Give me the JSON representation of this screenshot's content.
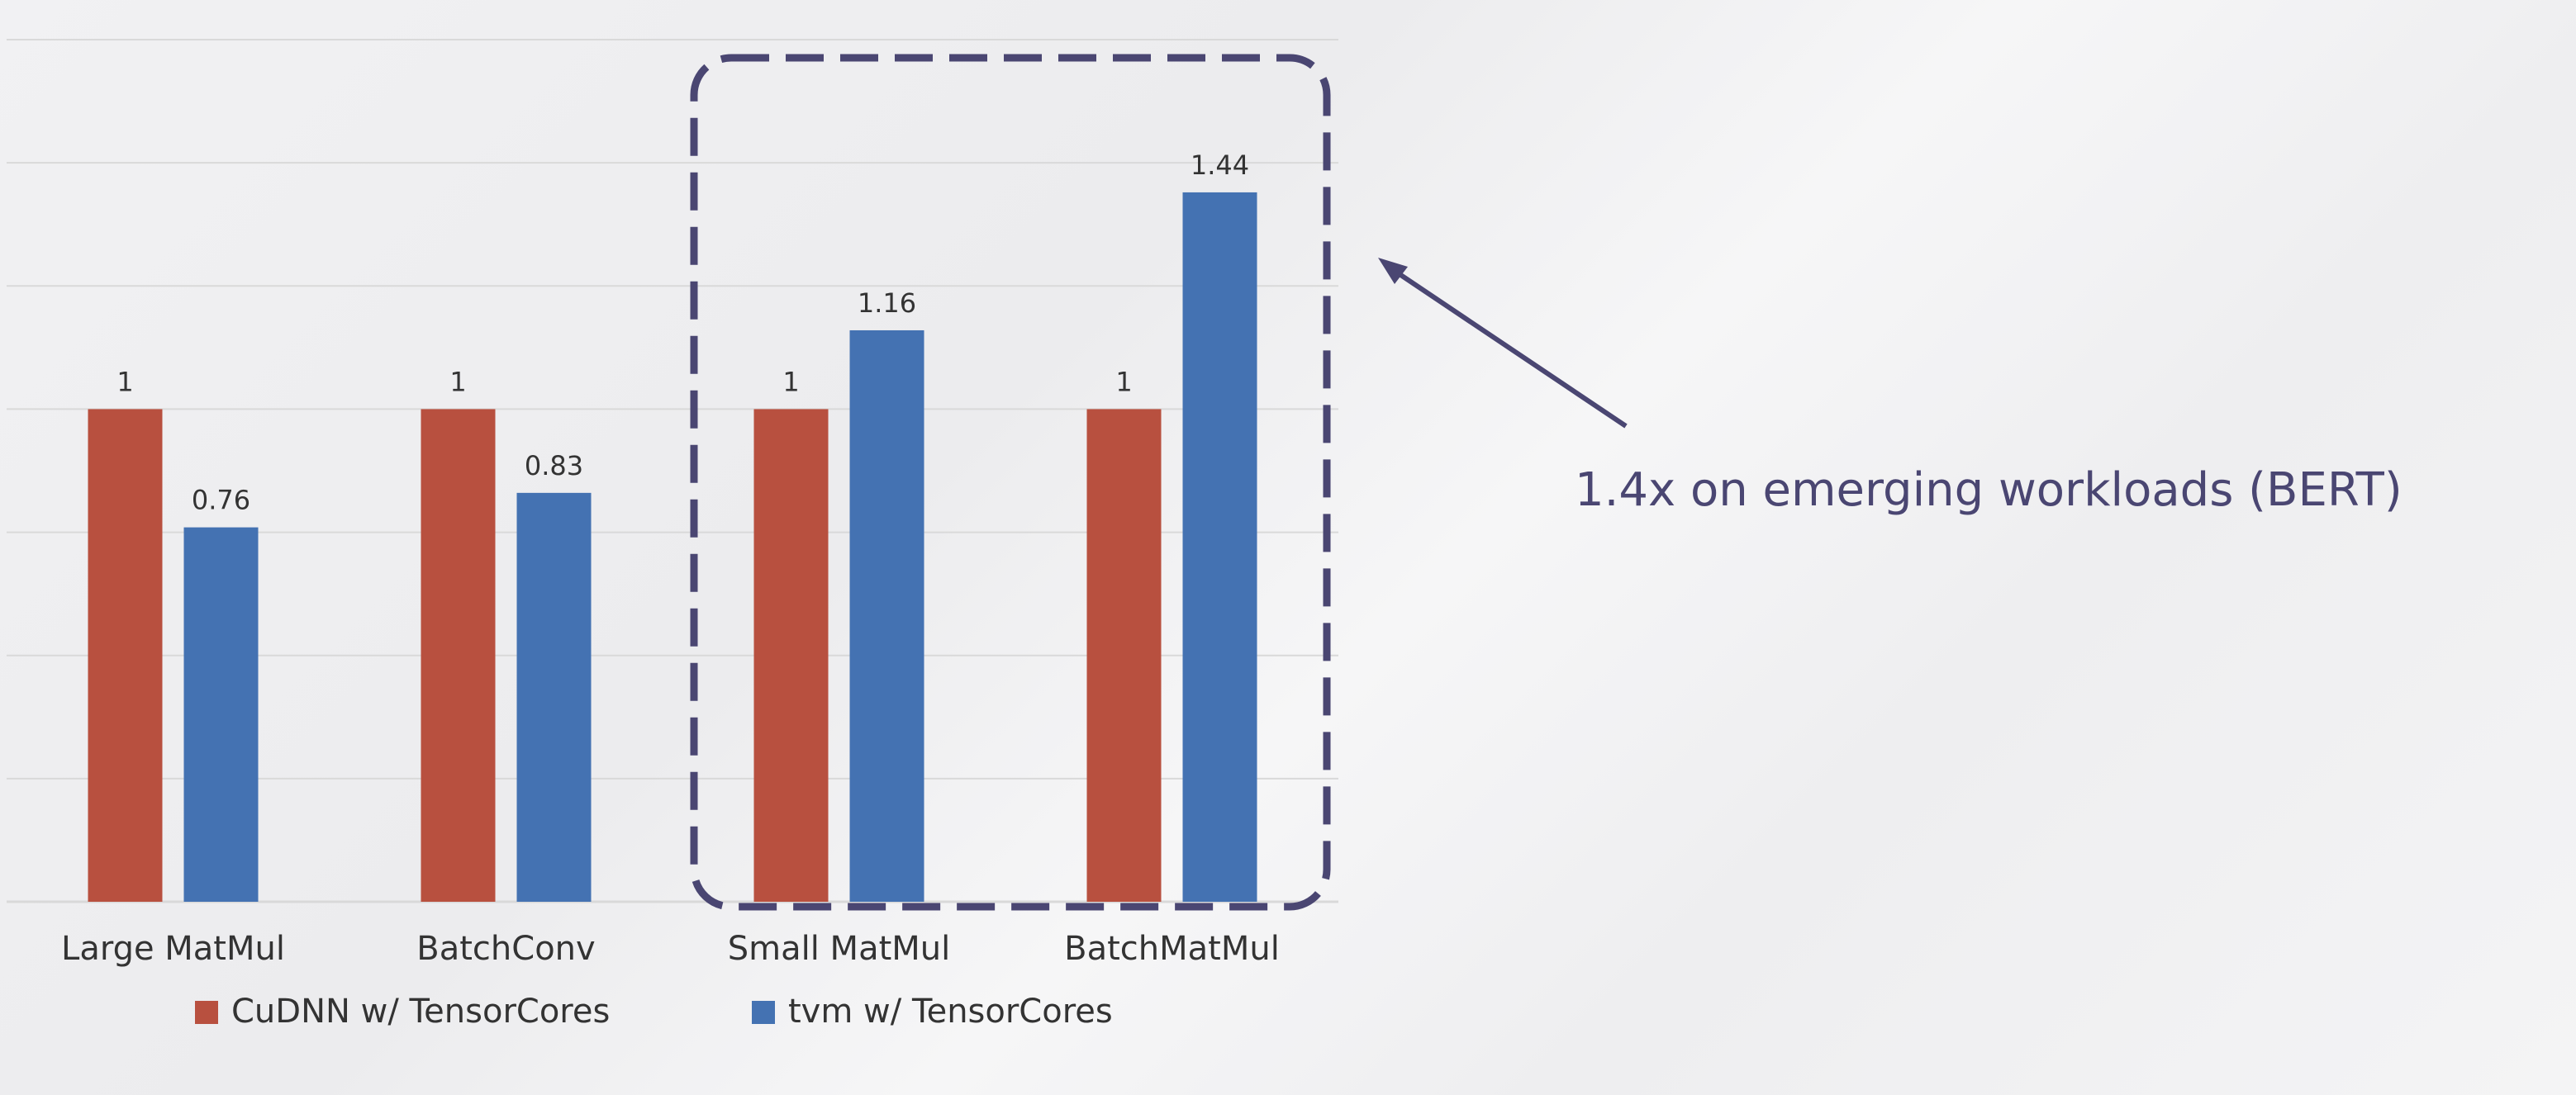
{
  "chart_data": {
    "type": "bar",
    "categories": [
      "Large MatMul",
      "BatchConv",
      "Small MatMul",
      "BatchMatMul"
    ],
    "series": [
      {
        "name": "CuDNN w/ TensorCores",
        "color": "#b8503f",
        "values": [
          1,
          1,
          1,
          1
        ]
      },
      {
        "name": "tvm w/ TensorCores",
        "color": "#4472b2",
        "values": [
          0.76,
          0.83,
          1.16,
          1.44
        ]
      }
    ],
    "ylim": [
      0,
      1.75
    ],
    "grid": true,
    "legend_position": "bottom",
    "highlight_categories": [
      "Small MatMul",
      "BatchMatMul"
    ]
  },
  "annotation": {
    "text": "1.4x on emerging workloads (BERT)",
    "color": "#4a4672"
  },
  "colors": {
    "gridline": "#d9d9d9",
    "highlight_border": "#4a4672"
  }
}
